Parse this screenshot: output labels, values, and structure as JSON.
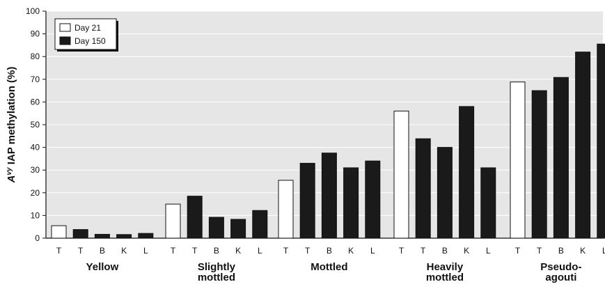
{
  "chart_data": {
    "type": "bar",
    "ylabel": {
      "italic": "A",
      "superscript": "vy",
      "rest": " IAP methylation (%)"
    },
    "ylim": [
      0,
      100
    ],
    "yticks": [
      0,
      10,
      20,
      30,
      40,
      50,
      60,
      70,
      80,
      90,
      100
    ],
    "grid": "horizontal",
    "legend_position": "top-left",
    "series": [
      {
        "name": "Day 21",
        "color": "#ffffff"
      },
      {
        "name": "Day 150",
        "color": "#1a1a1a"
      }
    ],
    "groups": [
      {
        "label": [
          "Yellow"
        ],
        "bars": [
          {
            "tissue": "T",
            "series": "Day 21",
            "value": 5.5
          },
          {
            "tissue": "T",
            "series": "Day 150",
            "value": 3.8
          },
          {
            "tissue": "B",
            "series": "Day 150",
            "value": 1.7
          },
          {
            "tissue": "K",
            "series": "Day 150",
            "value": 1.6
          },
          {
            "tissue": "L",
            "series": "Day 150",
            "value": 2.1
          }
        ]
      },
      {
        "label": [
          "Slightly",
          "mottled"
        ],
        "bars": [
          {
            "tissue": "T",
            "series": "Day 21",
            "value": 15.0
          },
          {
            "tissue": "T",
            "series": "Day 150",
            "value": 18.5
          },
          {
            "tissue": "B",
            "series": "Day 150",
            "value": 9.2
          },
          {
            "tissue": "K",
            "series": "Day 150",
            "value": 8.3
          },
          {
            "tissue": "L",
            "series": "Day 150",
            "value": 12.2
          }
        ]
      },
      {
        "label": [
          "Mottled"
        ],
        "bars": [
          {
            "tissue": "T",
            "series": "Day 21",
            "value": 25.5
          },
          {
            "tissue": "T",
            "series": "Day 150",
            "value": 33.0
          },
          {
            "tissue": "B",
            "series": "Day 150",
            "value": 37.5
          },
          {
            "tissue": "K",
            "series": "Day 150",
            "value": 31.0
          },
          {
            "tissue": "L",
            "series": "Day 150",
            "value": 34.0
          }
        ]
      },
      {
        "label": [
          "Heavily",
          "mottled"
        ],
        "bars": [
          {
            "tissue": "T",
            "series": "Day 21",
            "value": 56.0
          },
          {
            "tissue": "T",
            "series": "Day 150",
            "value": 43.8
          },
          {
            "tissue": "B",
            "series": "Day 150",
            "value": 40.0
          },
          {
            "tissue": "K",
            "series": "Day 150",
            "value": 58.0
          },
          {
            "tissue": "L",
            "series": "Day 150",
            "value": 31.0
          }
        ]
      },
      {
        "label": [
          "Pseudo-",
          "agouti"
        ],
        "bars": [
          {
            "tissue": "T",
            "series": "Day 21",
            "value": 68.8
          },
          {
            "tissue": "T",
            "series": "Day 150",
            "value": 65.0
          },
          {
            "tissue": "B",
            "series": "Day 150",
            "value": 70.8
          },
          {
            "tissue": "K",
            "series": "Day 150",
            "value": 82.0
          },
          {
            "tissue": "L",
            "series": "Day 150",
            "value": 85.5
          }
        ]
      }
    ]
  }
}
